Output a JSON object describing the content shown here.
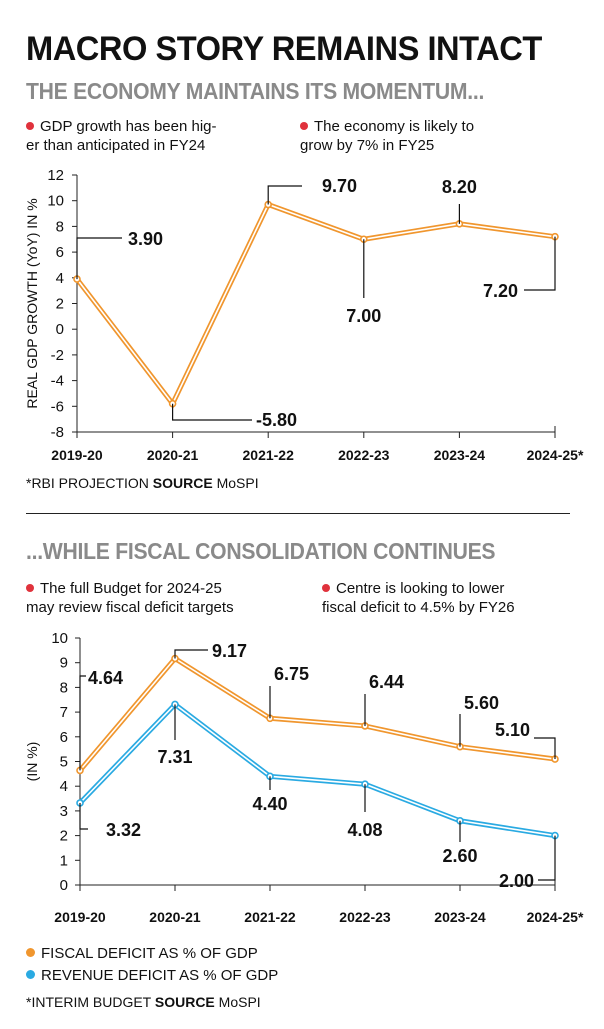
{
  "header": {
    "title": "MACRO STORY REMAINS INTACT",
    "subtitle1": "THE ECONOMY MAINTAINS ITS MOMENTUM...",
    "subtitle2": "...WHILE FISCAL CONSOLIDATION CONTINUES"
  },
  "section1": {
    "bullet1_line1": "GDP growth has been hig-",
    "bullet1_line2": "er than anticipated in FY24",
    "bullet2_line1": "The economy is likely to",
    "bullet2_line2": "grow by 7% in FY25",
    "note_prefix": "*RBI PROJECTION ",
    "note_source": "SOURCE",
    "note_suffix": " MoSPI"
  },
  "section2": {
    "bullet1_line1": "The full Budget for 2024-25",
    "bullet1_line2": "may review fiscal deficit targets",
    "bullet2_line1": "Centre is looking to lower",
    "bullet2_line2": "fiscal deficit to 4.5% by FY26",
    "legend_fiscal": "FISCAL DEFICIT AS % OF GDP",
    "legend_revenue": "REVENUE DEFICIT AS % OF GDP",
    "note_prefix": "*INTERIM BUDGET ",
    "note_source": "SOURCE",
    "note_suffix": " MoSPI"
  },
  "colors": {
    "orange": "#f0962e",
    "blue": "#2aaae2",
    "red_dot": "#e0323c"
  },
  "chart_data": [
    {
      "type": "line",
      "title": "THE ECONOMY MAINTAINS ITS MOMENTUM...",
      "xlabel": "",
      "ylabel": "REAL GDP GROWTH (YoY) IN %",
      "categories": [
        "2019-20",
        "2020-21",
        "2021-22",
        "2022-23",
        "2023-24",
        "2024-25*"
      ],
      "series": [
        {
          "name": "Real GDP growth",
          "color": "#f0962e",
          "values": [
            3.9,
            -5.8,
            9.7,
            7.0,
            8.2,
            7.2
          ],
          "labels": [
            "3.90",
            "-5.80",
            "9.70",
            "7.00",
            "8.20",
            "7.20"
          ]
        }
      ],
      "ylim": [
        -8,
        12
      ],
      "yticks": [
        "12",
        "10",
        "8",
        "6",
        "4",
        "2",
        "0",
        "-2",
        "-4",
        "-6",
        "-8"
      ],
      "grid": false
    },
    {
      "type": "line",
      "title": "...WHILE FISCAL CONSOLIDATION CONTINUES",
      "xlabel": "",
      "ylabel": "(IN %)",
      "categories": [
        "2019-20",
        "2020-21",
        "2021-22",
        "2022-23",
        "2023-24",
        "2024-25*"
      ],
      "series": [
        {
          "name": "FISCAL DEFICIT AS % OF GDP",
          "color": "#f0962e",
          "values": [
            4.64,
            9.17,
            6.75,
            6.44,
            5.6,
            5.1
          ],
          "labels": [
            "4.64",
            "9.17",
            "6.75",
            "6.44",
            "5.60",
            "5.10"
          ]
        },
        {
          "name": "REVENUE DEFICIT AS % OF GDP",
          "color": "#2aaae2",
          "values": [
            3.32,
            7.31,
            4.4,
            4.08,
            2.6,
            2.0
          ],
          "labels": [
            "3.32",
            "7.31",
            "4.40",
            "4.08",
            "2.60",
            "2.00"
          ]
        }
      ],
      "ylim": [
        0,
        10
      ],
      "yticks": [
        "10",
        "9",
        "8",
        "7",
        "6",
        "5",
        "4",
        "3",
        "2",
        "1",
        "0"
      ],
      "grid": false
    }
  ]
}
